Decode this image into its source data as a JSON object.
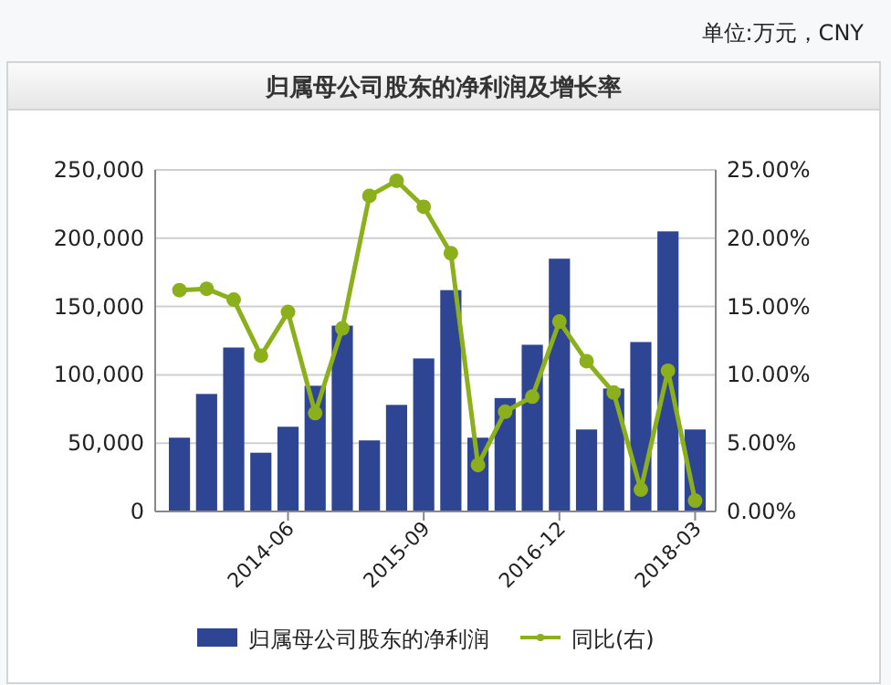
{
  "chart_data": {
    "type": "bar",
    "title": "归属母公司股东的净利润及增长率",
    "annotations": [
      "单位:万元，CNY"
    ],
    "categories": [
      null,
      null,
      null,
      null,
      "2014-06",
      null,
      null,
      null,
      null,
      "2015-09",
      null,
      null,
      null,
      null,
      "2016-12",
      null,
      null,
      null,
      null,
      "2018-03"
    ],
    "series": [
      {
        "name": "归属母公司股东的净利润",
        "color": "#2e4593",
        "values": [
          54000,
          86000,
          120000,
          43000,
          62000,
          92000,
          136000,
          52000,
          78000,
          112000,
          162000,
          54000,
          83000,
          122000,
          185000,
          60000,
          90000,
          124000,
          205000,
          60000
        ]
      },
      {
        "name": "同比(右)",
        "type": "line",
        "axis": "y2",
        "color": "#8cb01c",
        "values": [
          16.2,
          16.3,
          15.5,
          11.4,
          14.6,
          7.2,
          13.4,
          23.1,
          24.2,
          22.3,
          18.9,
          3.4,
          7.3,
          8.4,
          13.9,
          11.0,
          8.7,
          1.6,
          10.3,
          0.8
        ]
      }
    ],
    "ylim": [
      0,
      250000
    ],
    "yticks": [
      {
        "value": 0,
        "label": "0"
      },
      {
        "value": 50000,
        "label": "50,000"
      },
      {
        "value": 100000,
        "label": "100,000"
      },
      {
        "value": 150000,
        "label": "150,000"
      },
      {
        "value": 200000,
        "label": "200,000"
      },
      {
        "value": 250000,
        "label": "250,000"
      }
    ],
    "y2lim": [
      0,
      25
    ],
    "y2ticks": [
      {
        "value": 0,
        "label": "0.00%"
      },
      {
        "value": 5,
        "label": "5.00%"
      },
      {
        "value": 10,
        "label": "10.00%"
      },
      {
        "value": 15,
        "label": "15.00%"
      },
      {
        "value": 20,
        "label": "20.00%"
      },
      {
        "value": 25,
        "label": "25.00%"
      }
    ],
    "grid": "y",
    "legend": "bottom",
    "marker": "circle",
    "line_style": "solid"
  }
}
